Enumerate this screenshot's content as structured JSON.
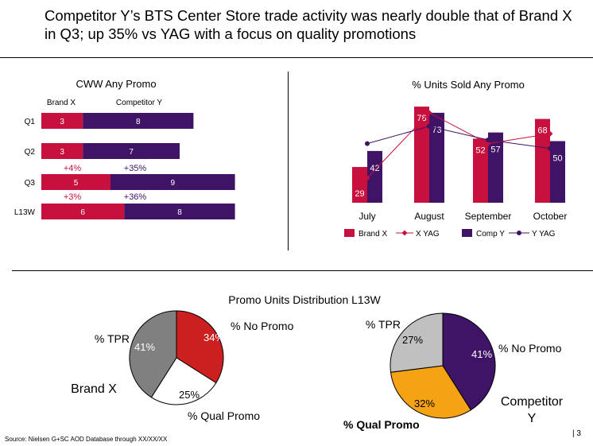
{
  "title": "Competitor Y’s BTS Center Store trade activity was nearly double that of Brand X in Q3; up 35% vs YAG with a focus on quality promotions",
  "source": "Source:  Nielsen G+SC AOD Database through XX/XX/XX",
  "page_number": "3",
  "colors": {
    "brand_x": "#c8103e",
    "competitor_y": "#3f1466",
    "x_yag_line": "#c8103e",
    "y_yag_line": "#3f1466",
    "tpr": "#808080",
    "no_promo_x": "#cc1f1f",
    "qual_promo_x": "#ffffff",
    "tpr_y": "#c0c0c0",
    "qual_promo_y": "#f5a214",
    "no_promo_y": "#3f1466"
  },
  "chart_data": [
    {
      "type": "bar",
      "orientation": "horizontal",
      "stacked": true,
      "title": "CWW Any Promo",
      "column_headers": [
        "Brand X",
        "Competitor Y"
      ],
      "categories": [
        "Q1",
        "Q2",
        "Q3",
        "L13W"
      ],
      "series": [
        {
          "name": "Brand X",
          "values": [
            3,
            3,
            5,
            6
          ]
        },
        {
          "name": "Competitor Y",
          "values": [
            8,
            7,
            9,
            8
          ]
        }
      ],
      "annotations": [
        {
          "between": [
            "Q2",
            "Q3"
          ],
          "brand_x": "+4%",
          "competitor_y": "+35%"
        },
        {
          "between": [
            "Q3",
            "L13W"
          ],
          "brand_x": "+3%",
          "competitor_y": "+36%"
        }
      ],
      "grid": false
    },
    {
      "type": "bar",
      "title": "% Units Sold Any Promo",
      "categories": [
        "July",
        "August",
        "September",
        "October"
      ],
      "series": [
        {
          "name": "Brand X",
          "type": "bar",
          "values": [
            29,
            78,
            52,
            68
          ]
        },
        {
          "name": "Comp Y",
          "type": "bar",
          "values": [
            42,
            73,
            57,
            50
          ]
        },
        {
          "name": "X YAG",
          "type": "line",
          "values": [
            20,
            73,
            48,
            56
          ]
        },
        {
          "name": "Y YAG",
          "type": "line",
          "values": [
            48,
            62,
            51,
            44
          ]
        }
      ],
      "ylim": [
        0,
        80
      ],
      "legend": "bottom",
      "grid": false
    },
    {
      "type": "pie",
      "title": "Promo Units Distribution L13W",
      "label": "Brand X",
      "slices": [
        {
          "name": "% No Promo",
          "value": 34,
          "label": "34%"
        },
        {
          "name": "% Qual Promo",
          "value": 25,
          "label": "25%"
        },
        {
          "name": "% TPR",
          "value": 41,
          "label": "41%"
        }
      ]
    },
    {
      "type": "pie",
      "label": "Competitor Y",
      "slices": [
        {
          "name": "% No Promo",
          "value": 41,
          "label": "41%"
        },
        {
          "name": "% Qual Promo",
          "value": 32,
          "label": "32%"
        },
        {
          "name": "% TPR",
          "value": 27,
          "label": "27%"
        }
      ]
    }
  ]
}
